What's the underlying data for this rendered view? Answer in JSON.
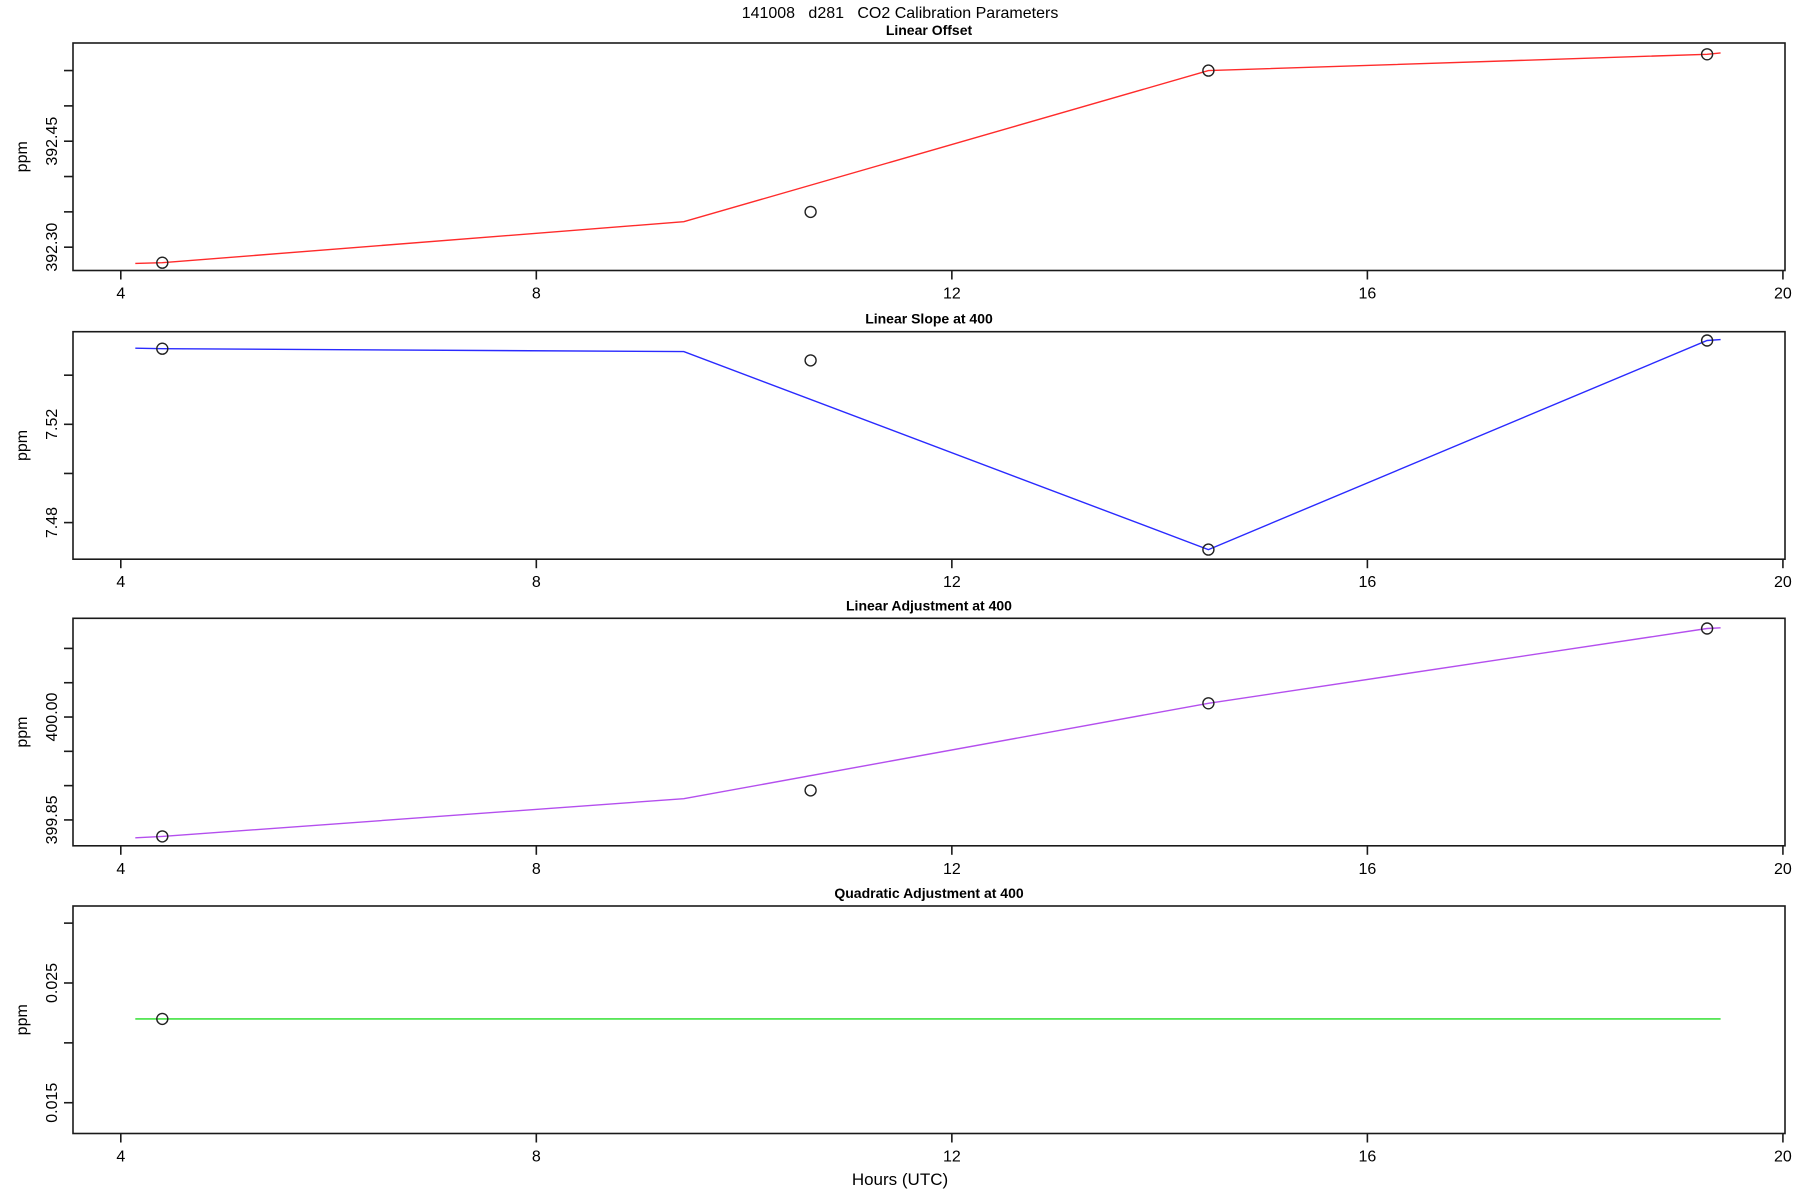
{
  "header": {
    "title": "141008   d281   CO2 Calibration Parameters"
  },
  "xaxis": {
    "label": "Hours (UTC)"
  },
  "chart_data": {
    "type": "line",
    "title": "141008   d281   CO2 Calibration Parameters",
    "xlabel": "Hours (UTC)",
    "grid": "off",
    "legend": "none",
    "xlim": [
      3.54,
      20.02
    ],
    "x_ticks": [
      {
        "v": 4,
        "label": "4"
      },
      {
        "v": 8,
        "label": "8"
      },
      {
        "v": 12,
        "label": "12"
      },
      {
        "v": 16,
        "label": "16"
      },
      {
        "v": 20,
        "label": "20"
      }
    ],
    "panels": [
      {
        "title": "Linear Offset",
        "ylabel": "ppm",
        "color": "#ff2b2b",
        "ylim": [
          392.267,
          392.589
        ],
        "yticks": [
          {
            "v": 392.3,
            "label": "392.30"
          },
          {
            "v": 392.35,
            "label": ""
          },
          {
            "v": 392.4,
            "label": ""
          },
          {
            "v": 392.45,
            "label": "392.45"
          },
          {
            "v": 392.5,
            "label": ""
          },
          {
            "v": 392.55,
            "label": ""
          }
        ],
        "line": [
          [
            4.14,
            392.277
          ],
          [
            4.4,
            392.278
          ],
          [
            9.42,
            392.336
          ],
          [
            14.47,
            392.55
          ],
          [
            19.27,
            392.573
          ],
          [
            19.4,
            392.575
          ]
        ],
        "points": [
          [
            4.4,
            392.278
          ],
          [
            10.64,
            392.35
          ],
          [
            14.47,
            392.55
          ],
          [
            19.27,
            392.573
          ]
        ]
      },
      {
        "title": "Linear Slope at 400",
        "ylabel": "ppm",
        "color": "#2a2aff",
        "ylim": [
          7.4651,
          7.5577
        ],
        "yticks": [
          {
            "v": 7.48,
            "label": "7.48"
          },
          {
            "v": 7.5,
            "label": ""
          },
          {
            "v": 7.52,
            "label": "7.52"
          },
          {
            "v": 7.54,
            "label": ""
          }
        ],
        "line": [
          [
            4.14,
            7.551
          ],
          [
            4.4,
            7.5508
          ],
          [
            9.42,
            7.5496
          ],
          [
            14.47,
            7.469
          ],
          [
            19.27,
            7.5541
          ],
          [
            19.4,
            7.5545
          ]
        ],
        "points": [
          [
            4.4,
            7.5508
          ],
          [
            10.64,
            7.546
          ],
          [
            14.47,
            7.469
          ],
          [
            19.27,
            7.5541
          ]
        ]
      },
      {
        "title": "Linear Adjustment at 400",
        "ylabel": "ppm",
        "color": "#b44fee",
        "ylim": [
          399.8123,
          400.1439
        ],
        "yticks": [
          {
            "v": 399.85,
            "label": "399.85"
          },
          {
            "v": 399.9,
            "label": ""
          },
          {
            "v": 399.95,
            "label": ""
          },
          {
            "v": 400.0,
            "label": "400.00"
          },
          {
            "v": 400.05,
            "label": ""
          },
          {
            "v": 400.1,
            "label": ""
          }
        ],
        "line": [
          [
            4.14,
            399.824
          ],
          [
            4.4,
            399.826
          ],
          [
            9.42,
            399.881
          ],
          [
            14.47,
            400.02
          ],
          [
            19.27,
            400.129
          ],
          [
            19.4,
            400.13
          ]
        ],
        "points": [
          [
            4.4,
            399.826
          ],
          [
            10.64,
            399.893
          ],
          [
            14.47,
            400.02
          ],
          [
            19.27,
            400.129
          ]
        ]
      },
      {
        "title": "Quadratic Adjustment at 400",
        "ylabel": "ppm",
        "color": "#21dd21",
        "ylim": [
          0.01243,
          0.03143
        ],
        "yticks": [
          {
            "v": 0.015,
            "label": "0.015"
          },
          {
            "v": 0.02,
            "label": ""
          },
          {
            "v": 0.025,
            "label": "0.025"
          },
          {
            "v": 0.03,
            "label": ""
          }
        ],
        "line": [
          [
            4.14,
            0.022
          ],
          [
            19.4,
            0.022
          ]
        ],
        "points": [
          [
            4.4,
            0.022
          ]
        ]
      }
    ]
  }
}
